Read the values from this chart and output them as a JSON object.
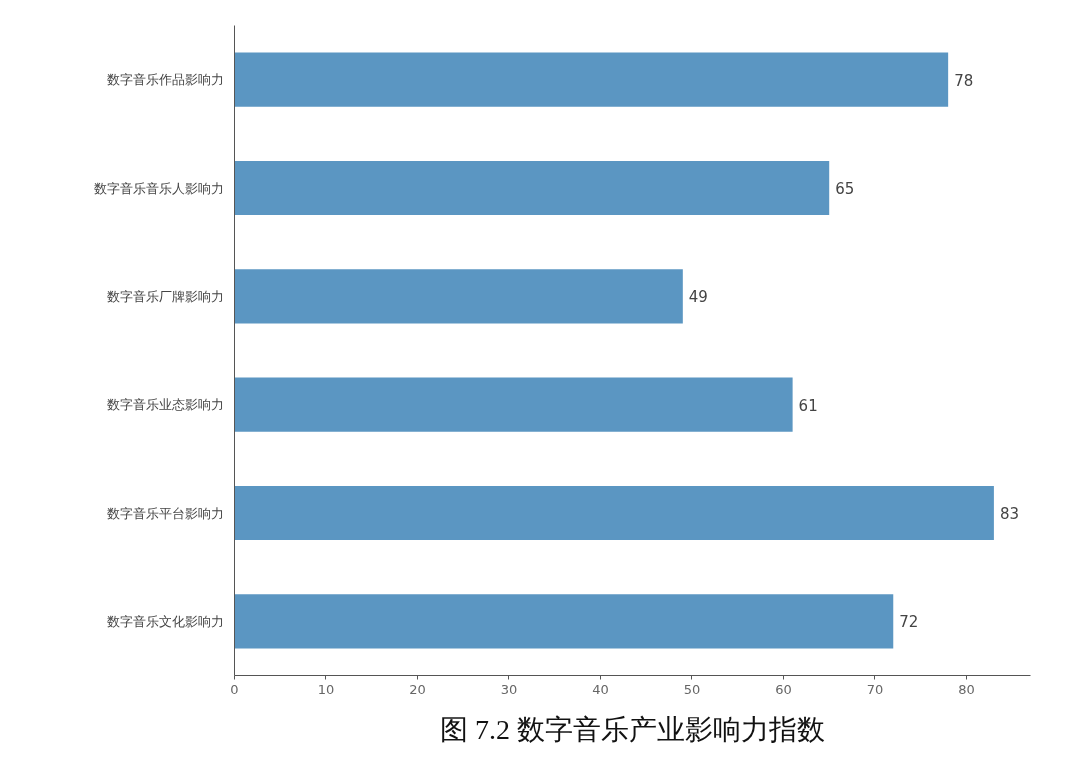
{
  "chart_data": {
    "type": "bar",
    "orientation": "horizontal",
    "title": "图 7.2 数字音乐产业影响力指数",
    "categories": [
      "数字音乐作品影响力",
      "数字音乐音乐人影响力",
      "数字音乐厂牌影响力",
      "数字音乐业态影响力",
      "数字音乐平台影响力",
      "数字音乐文化影响力"
    ],
    "values": [
      78,
      65,
      49,
      61,
      83,
      72
    ],
    "color": "#5b96c2",
    "xlim": [
      0,
      87
    ],
    "xticks": [
      0,
      10,
      20,
      30,
      40,
      50,
      60,
      70,
      80
    ],
    "grid": false,
    "data_labels": true
  }
}
